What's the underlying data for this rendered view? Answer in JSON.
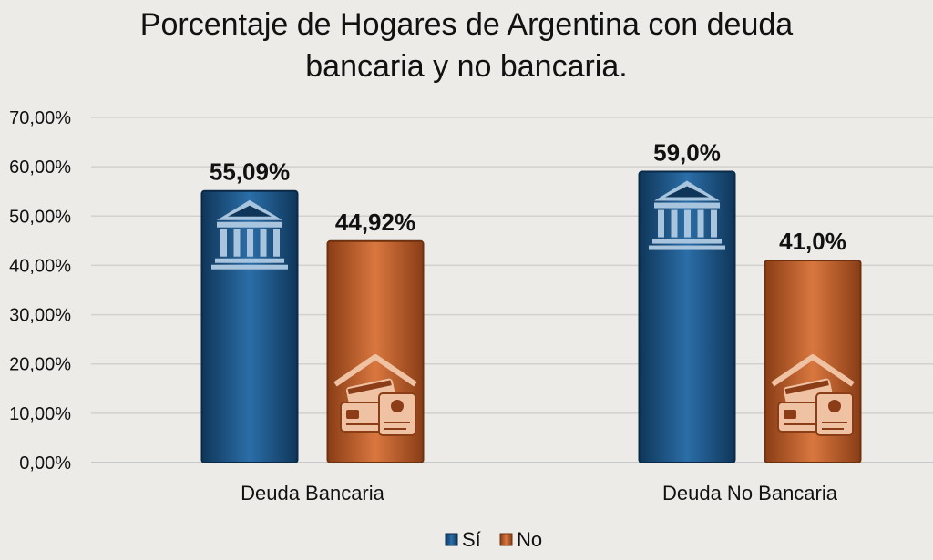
{
  "chart_data": {
    "type": "bar",
    "title_lines": [
      "Porcentaje de Hogares de Argentina con deuda",
      "bancaria y no bancaria."
    ],
    "categories": [
      "Deuda Bancaria",
      "Deuda No Bancaria"
    ],
    "series": [
      {
        "name": "Sí",
        "color": "#1f5a8c",
        "values": [
          55.09,
          59.0
        ],
        "data_labels": [
          "55,09%",
          "59,0%"
        ],
        "icon": "bank-icon"
      },
      {
        "name": "No",
        "color": "#c5622e",
        "values": [
          44.92,
          41.0
        ],
        "data_labels": [
          "44,92%",
          "41,0%"
        ],
        "icon": "house-cards-icon"
      }
    ],
    "ylim": [
      0,
      70
    ],
    "y_ticks": [
      0,
      10,
      20,
      30,
      40,
      50,
      60,
      70
    ],
    "y_tick_labels": [
      "0,00%",
      "10,00%",
      "20,00%",
      "30,00%",
      "40,00%",
      "50,00%",
      "60,00%",
      "70,00%"
    ],
    "grid": true,
    "legend_position": "bottom",
    "background_color": "#ecebe8"
  }
}
